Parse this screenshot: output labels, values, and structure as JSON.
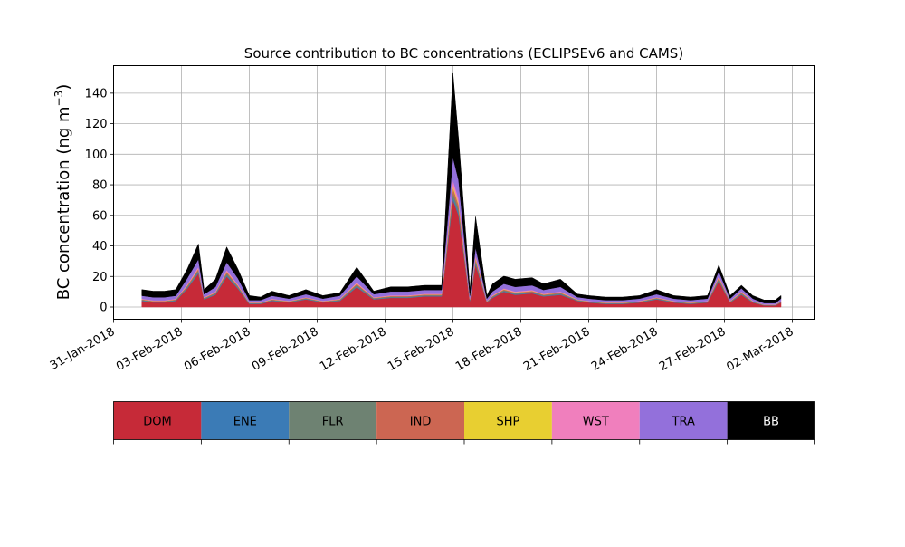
{
  "chart_data": {
    "type": "area",
    "title": "Source contribution to BC concentrations (ECLIPSEv6 and CAMS)",
    "xlabel": "",
    "ylabel_main": "BC concentration (ng m",
    "ylabel_exp": "−3",
    "ylabel_close": ")",
    "x_ticks": [
      "31-Jan-2018",
      "03-Feb-2018",
      "06-Feb-2018",
      "09-Feb-2018",
      "12-Feb-2018",
      "15-Feb-2018",
      "18-Feb-2018",
      "21-Feb-2018",
      "24-Feb-2018",
      "27-Feb-2018",
      "02-Mar-2018"
    ],
    "y_ticks": [
      "0",
      "20",
      "40",
      "60",
      "80",
      "100",
      "120",
      "140"
    ],
    "xlim": [
      "2018-01-31",
      "2018-03-03"
    ],
    "ylim": [
      -8,
      158
    ],
    "grid": true,
    "stacked": true,
    "x": [
      "2018-02-01T06:00",
      "2018-02-01T18:00",
      "2018-02-02T06:00",
      "2018-02-02T18:00",
      "2018-02-03T06:00",
      "2018-02-03T18:00",
      "2018-02-04T00:00",
      "2018-02-04T12:00",
      "2018-02-05T00:00",
      "2018-02-05T12:00",
      "2018-02-06T00:00",
      "2018-02-06T12:00",
      "2018-02-07T00:00",
      "2018-02-07T18:00",
      "2018-02-08T12:00",
      "2018-02-09T06:00",
      "2018-02-10T00:00",
      "2018-02-10T18:00",
      "2018-02-11T12:00",
      "2018-02-12T06:00",
      "2018-02-13T00:00",
      "2018-02-13T18:00",
      "2018-02-14T12:00",
      "2018-02-15T00:00",
      "2018-02-15T06:00",
      "2018-02-15T18:00",
      "2018-02-16T00:00",
      "2018-02-16T12:00",
      "2018-02-16T18:00",
      "2018-02-17T06:00",
      "2018-02-17T18:00",
      "2018-02-18T12:00",
      "2018-02-19T00:00",
      "2018-02-19T18:00",
      "2018-02-20T12:00",
      "2018-02-21T00:00",
      "2018-02-21T18:00",
      "2018-02-22T12:00",
      "2018-02-23T06:00",
      "2018-02-24T00:00",
      "2018-02-24T18:00",
      "2018-02-25T12:00",
      "2018-02-26T06:00",
      "2018-02-26T18:00",
      "2018-02-27T06:00",
      "2018-02-27T18:00",
      "2018-02-28T06:00",
      "2018-02-28T18:00",
      "2018-03-01T06:00",
      "2018-03-01T12:00"
    ],
    "series": [
      {
        "name": "DOM",
        "color": "#c62a38",
        "values": [
          4,
          3,
          3,
          4,
          12,
          22,
          5,
          8,
          20,
          12,
          2,
          2,
          4,
          3,
          5,
          3,
          4,
          13,
          5,
          6,
          6,
          7,
          7,
          70,
          60,
          4,
          28,
          3,
          6,
          10,
          8,
          9,
          7,
          8,
          4,
          3,
          2,
          2,
          3,
          5,
          3,
          2,
          3,
          17,
          3,
          8,
          3,
          1,
          1,
          3
        ]
      },
      {
        "name": "ENE",
        "color": "#3b7bb6",
        "values": [
          0.3,
          0.3,
          0.3,
          0.3,
          0.5,
          0.8,
          0.3,
          0.4,
          0.8,
          0.5,
          0.2,
          0.2,
          0.3,
          0.2,
          0.3,
          0.2,
          0.3,
          0.6,
          0.3,
          0.3,
          0.3,
          0.3,
          0.3,
          2,
          1.8,
          0.3,
          1,
          0.2,
          0.3,
          0.4,
          0.4,
          0.4,
          0.3,
          0.4,
          0.2,
          0.2,
          0.2,
          0.2,
          0.2,
          0.3,
          0.2,
          0.2,
          0.2,
          0.6,
          0.2,
          0.4,
          0.2,
          0.1,
          0.1,
          0.2
        ]
      },
      {
        "name": "FLR",
        "color": "#6e8272",
        "values": [
          0.4,
          0.4,
          0.4,
          0.4,
          0.8,
          1.2,
          0.4,
          0.6,
          1.2,
          0.8,
          0.3,
          0.3,
          0.4,
          0.3,
          0.4,
          0.3,
          0.4,
          0.9,
          0.4,
          0.5,
          0.5,
          0.5,
          0.5,
          3,
          2.5,
          0.4,
          1.5,
          0.3,
          0.5,
          0.6,
          0.6,
          0.6,
          0.5,
          0.6,
          0.3,
          0.3,
          0.3,
          0.3,
          0.3,
          0.4,
          0.3,
          0.3,
          0.3,
          1,
          0.3,
          0.6,
          0.3,
          0.2,
          0.2,
          0.3
        ]
      },
      {
        "name": "IND",
        "color": "#cc6652",
        "values": [
          0.3,
          0.3,
          0.3,
          0.3,
          0.6,
          1,
          0.3,
          0.5,
          1,
          0.6,
          0.2,
          0.2,
          0.3,
          0.2,
          0.3,
          0.2,
          0.3,
          0.7,
          0.3,
          0.4,
          0.4,
          0.4,
          0.4,
          3,
          2.5,
          0.3,
          1.5,
          0.2,
          0.4,
          0.5,
          0.5,
          0.5,
          0.4,
          0.5,
          0.2,
          0.2,
          0.2,
          0.2,
          0.2,
          0.3,
          0.2,
          0.2,
          0.2,
          0.8,
          0.2,
          0.5,
          0.2,
          0.1,
          0.1,
          0.2
        ]
      },
      {
        "name": "SHP",
        "color": "#e8cf31",
        "values": [
          0.1,
          0.1,
          0.1,
          0.1,
          0.2,
          0.3,
          0.1,
          0.1,
          0.3,
          0.2,
          0.1,
          0.1,
          0.1,
          0.1,
          0.1,
          0.1,
          0.1,
          0.2,
          0.1,
          0.1,
          0.1,
          0.1,
          0.1,
          1.5,
          1.2,
          0.1,
          0.6,
          0.1,
          0.1,
          0.2,
          0.2,
          0.2,
          0.1,
          0.2,
          0.1,
          0.1,
          0.1,
          0.1,
          0.1,
          0.1,
          0.1,
          0.1,
          0.1,
          0.3,
          0.1,
          0.2,
          0.1,
          0.1,
          0.1,
          0.1
        ]
      },
      {
        "name": "WST",
        "color": "#f07fbd",
        "values": [
          0.3,
          0.3,
          0.3,
          0.3,
          0.6,
          1,
          0.3,
          0.5,
          1,
          0.6,
          0.2,
          0.2,
          0.3,
          0.2,
          0.3,
          0.2,
          0.3,
          0.7,
          0.3,
          0.4,
          0.4,
          0.4,
          0.4,
          3.5,
          3,
          0.3,
          1.5,
          0.2,
          0.4,
          0.5,
          0.5,
          0.5,
          0.4,
          0.5,
          0.2,
          0.2,
          0.2,
          0.2,
          0.2,
          0.3,
          0.2,
          0.2,
          0.2,
          0.8,
          0.2,
          0.5,
          0.2,
          0.1,
          0.1,
          0.2
        ]
      },
      {
        "name": "TRA",
        "color": "#9370db",
        "values": [
          2,
          2,
          2,
          2,
          4,
          5,
          2,
          3,
          5,
          4,
          1.5,
          1.5,
          2,
          1.5,
          2,
          1.5,
          2,
          4,
          2,
          2.5,
          2.5,
          2.5,
          2.5,
          15,
          12,
          2,
          5,
          1.5,
          2.5,
          3,
          3,
          3,
          2.5,
          3,
          1.5,
          1.5,
          1.5,
          1.5,
          1.5,
          2,
          1.5,
          1.5,
          1.5,
          3,
          1.5,
          2,
          1.5,
          1,
          1,
          1.5
        ]
      },
      {
        "name": "BB",
        "color": "#000000",
        "values": [
          4,
          4,
          4,
          4,
          6,
          10,
          3,
          5,
          10,
          6,
          3,
          2,
          3,
          2,
          3,
          2,
          2,
          6,
          2,
          3,
          3,
          3,
          3,
          55,
          27,
          4,
          20,
          2,
          5,
          5,
          5,
          5,
          4,
          5,
          2,
          2,
          2,
          2,
          2,
          3,
          2,
          2,
          2,
          4,
          2,
          2,
          2,
          2,
          2,
          2
        ]
      }
    ]
  }
}
